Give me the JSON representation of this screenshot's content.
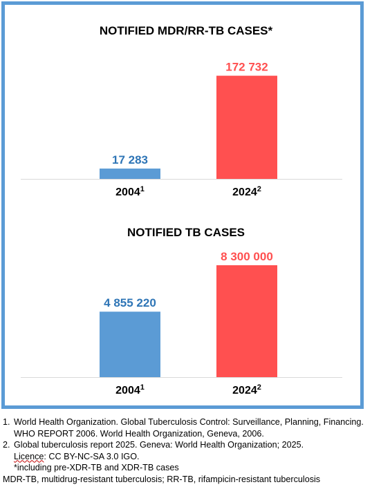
{
  "colors": {
    "blue": "#5B9BD5",
    "blue_text": "#2E75B6",
    "red": "#FF5050",
    "frame": "#5B9BD5",
    "axis": "#D9D9D9"
  },
  "chart_data": [
    {
      "type": "bar",
      "title": "NOTIFIED MDR/RR-TB CASES*",
      "categories": [
        "2004",
        "2024"
      ],
      "category_superscripts": [
        "1",
        "2"
      ],
      "values": [
        17283,
        172732
      ],
      "value_labels": [
        "17 283",
        "172  732"
      ],
      "bar_colors": [
        "#5B9BD5",
        "#FF5050"
      ],
      "label_colors": [
        "#2E75B6",
        "#FF5050"
      ],
      "ylim": [
        0,
        185000
      ],
      "grid": false,
      "legend": "none"
    },
    {
      "type": "bar",
      "title": "NOTIFIED TB CASES",
      "categories": [
        "2004",
        "2024"
      ],
      "category_superscripts": [
        "1",
        "2"
      ],
      "values": [
        4855220,
        8300000
      ],
      "value_labels": [
        "4 855 220",
        "8 300 000"
      ],
      "bar_colors": [
        "#5B9BD5",
        "#FF5050"
      ],
      "label_colors": [
        "#2E75B6",
        "#FF5050"
      ],
      "ylim": [
        0,
        8300000
      ],
      "grid": false,
      "legend": "none"
    }
  ],
  "footnotes": {
    "items": [
      {
        "num": "1.",
        "text": "World Health Organization. Global Tuberculosis Control: Surveillance, Planning, Financing. WHO REPORT 2006. World Health Organization, Geneva, 2006."
      },
      {
        "num": "2.",
        "text": "Global tuberculosis report 2025. Geneva: World Health Organization; 2025."
      }
    ],
    "licence_word": "Licence",
    "licence_rest": ": CC BY-NC-SA 3.0 IGO.",
    "including": "*including pre-XDR-TB and XDR-TB cases",
    "abbreviations": "MDR-TB, multidrug-resistant tuberculosis; RR-TB, rifampicin-resistant tuberculosis"
  }
}
